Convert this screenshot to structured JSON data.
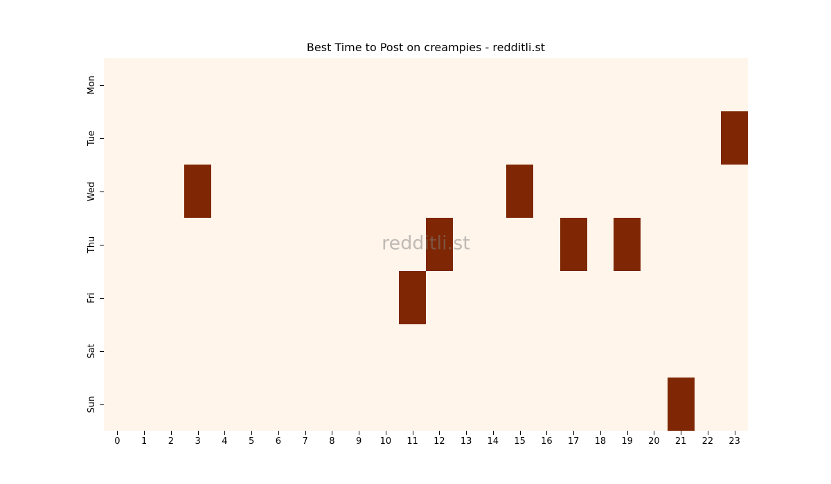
{
  "chart_data": {
    "type": "heatmap",
    "title": "Best Time to Post on creampies - redditli.st",
    "xlabel": "",
    "ylabel": "",
    "x": [
      "0",
      "1",
      "2",
      "3",
      "4",
      "5",
      "6",
      "7",
      "8",
      "9",
      "10",
      "11",
      "12",
      "13",
      "14",
      "15",
      "16",
      "17",
      "18",
      "19",
      "20",
      "21",
      "22",
      "23"
    ],
    "y": [
      "Mon",
      "Tue",
      "Wed",
      "Thu",
      "Fri",
      "Sat",
      "Sun"
    ],
    "values": [
      [
        0,
        0,
        0,
        0,
        0,
        0,
        0,
        0,
        0,
        0,
        0,
        0,
        0,
        0,
        0,
        0,
        0,
        0,
        0,
        0,
        0,
        0,
        0,
        0
      ],
      [
        0,
        0,
        0,
        0,
        0,
        0,
        0,
        0,
        0,
        0,
        0,
        0,
        0,
        0,
        0,
        0,
        0,
        0,
        0,
        0,
        0,
        0,
        0,
        1
      ],
      [
        0,
        0,
        0,
        1,
        0,
        0,
        0,
        0,
        0,
        0,
        0,
        0,
        0,
        0,
        0,
        1,
        0,
        0,
        0,
        0,
        0,
        0,
        0,
        0
      ],
      [
        0,
        0,
        0,
        0,
        0,
        0,
        0,
        0,
        0,
        0,
        0,
        0,
        1,
        0,
        0,
        0,
        0,
        1,
        0,
        1,
        0,
        0,
        0,
        0
      ],
      [
        0,
        0,
        0,
        0,
        0,
        0,
        0,
        0,
        0,
        0,
        0,
        1,
        0,
        0,
        0,
        0,
        0,
        0,
        0,
        0,
        0,
        0,
        0,
        0
      ],
      [
        0,
        0,
        0,
        0,
        0,
        0,
        0,
        0,
        0,
        0,
        0,
        0,
        0,
        0,
        0,
        0,
        0,
        0,
        0,
        0,
        0,
        0,
        0,
        0
      ],
      [
        0,
        0,
        0,
        0,
        0,
        0,
        0,
        0,
        0,
        0,
        0,
        0,
        0,
        0,
        0,
        0,
        0,
        0,
        0,
        0,
        0,
        1,
        0,
        0
      ]
    ],
    "colormap": "Oranges",
    "color_low": "#fff5eb",
    "color_high": "#7f2704",
    "grid": false,
    "legend": "none",
    "annotations": [
      {
        "text": "redditli.st",
        "type": "watermark",
        "position": "center"
      }
    ]
  },
  "title": "Best Time to Post on creampies - redditli.st",
  "watermark": "redditli.st",
  "colors": {
    "low": "#fff5eb",
    "high": "#7f2704",
    "watermark": "rgba(128,128,128,0.5)"
  }
}
